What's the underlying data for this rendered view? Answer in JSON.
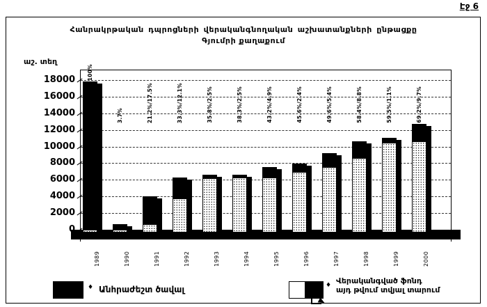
{
  "page": {
    "corner_label": "Էջ 6"
  },
  "chart_data": {
    "type": "bar",
    "title": "Հանրակրթական դպրոցների վերականգնողական աշխատանքների ընթացքը",
    "subtitle": "Գյումրի քաղաքում",
    "y_axis_unit": "աշ. տեղ",
    "ylim": [
      0,
      18000
    ],
    "yticks": [
      0,
      2000,
      4000,
      6000,
      8000,
      10000,
      12000,
      14000,
      16000,
      18000
    ],
    "grid": true,
    "legend_position": "bottom",
    "categories": [
      "1989",
      "1990",
      "1991",
      "1992",
      "1993",
      "1994",
      "1995",
      "1996",
      "1997",
      "1998",
      "1999",
      "2000"
    ],
    "series": [
      {
        "name": "Վերականգված ֆոնդ",
        "style": "white-dotted",
        "values": [
          0,
          0,
          700,
          3800,
          6200,
          6250,
          6300,
          6950,
          7550,
          8650,
          10450,
          10650
        ]
      },
      {
        "name": "այդ թվում տվյալ տարում",
        "style": "black",
        "values": [
          17800,
          700,
          3300,
          2500,
          400,
          400,
          1200,
          1000,
          1650,
          1950,
          600,
          2050
        ]
      }
    ],
    "bar_labels": [
      "100%",
      "3.7%",
      "21.2%/17.5%",
      "33.3%/12.1%",
      "35.8%/2.5%",
      "38.3%/2.5%",
      "43.2%/4.9%",
      "45.6%/2.4%",
      "49.6%/5.4%",
      "58.4%/8.8%",
      "59.5%/1.1%",
      "69.2%/9.7%"
    ],
    "legend": [
      {
        "bullet": "♦",
        "label": "Անհրաժեշտ ծավալ",
        "swatch": "black"
      },
      {
        "bullet": "♦",
        "label_line1": "Վերականգված ֆոնդ",
        "label_line2": "այդ թվում տվյալ տարում",
        "swatch": "white-black-split"
      }
    ]
  }
}
